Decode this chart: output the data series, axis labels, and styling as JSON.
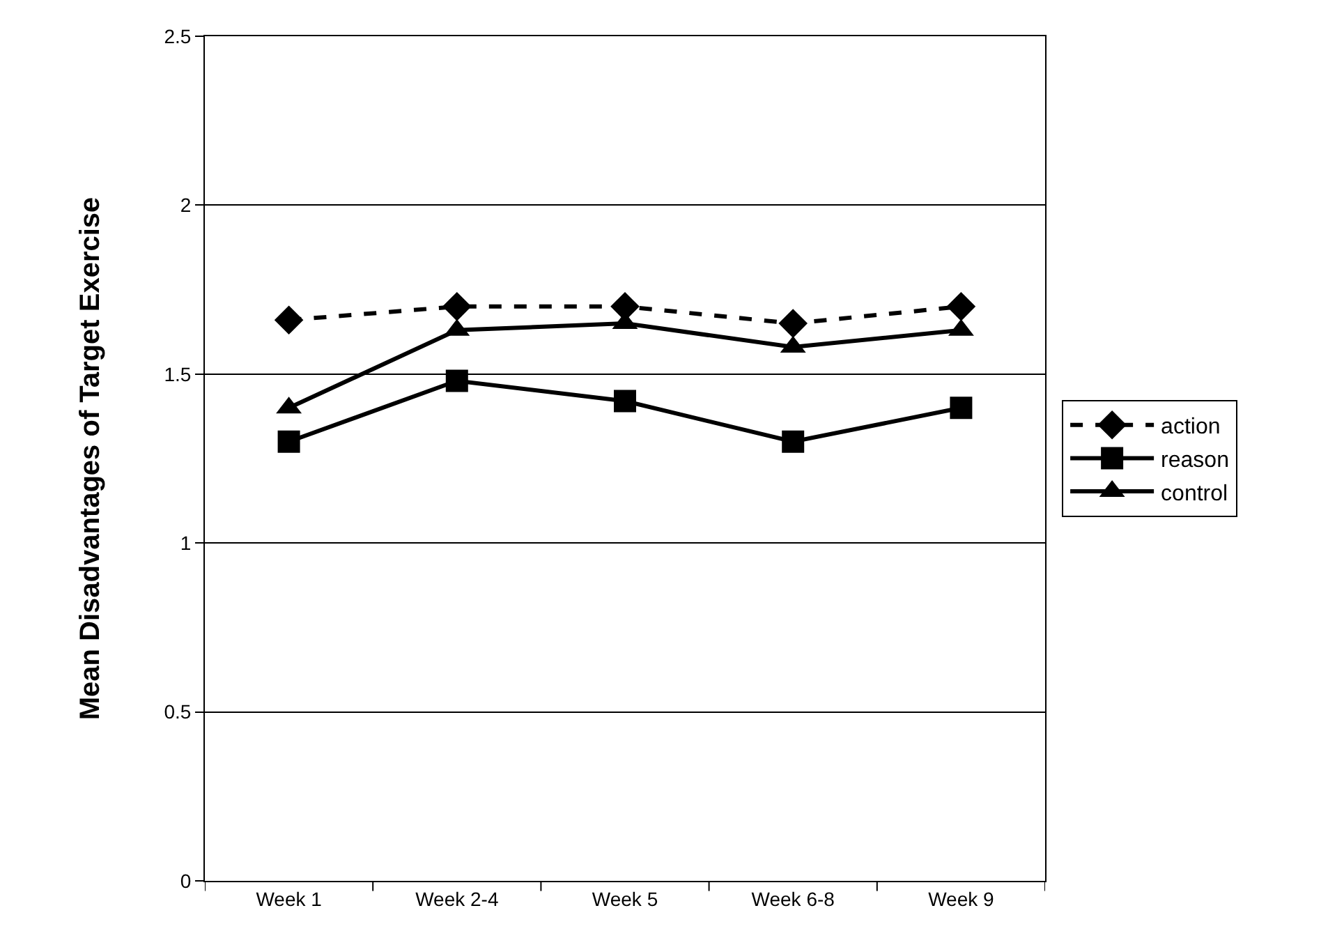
{
  "chart_data": {
    "type": "line",
    "ylabel": "Mean Disadvantages of Target Exercise",
    "categories": [
      "Week 1",
      "Week 2-4",
      "Week 5",
      "Week 6-8",
      "Week 9"
    ],
    "series": [
      {
        "name": "action",
        "color": "#000000",
        "marker": "diamond",
        "line_style": "dashed",
        "values": [
          1.66,
          1.7,
          1.7,
          1.65,
          1.7
        ]
      },
      {
        "name": "reason",
        "color": "#000000",
        "marker": "square",
        "line_style": "solid",
        "values": [
          1.3,
          1.48,
          1.42,
          1.3,
          1.4
        ]
      },
      {
        "name": "control",
        "color": "#000000",
        "marker": "triangle",
        "line_style": "solid",
        "values": [
          1.4,
          1.63,
          1.65,
          1.58,
          1.63
        ]
      }
    ],
    "ylim": [
      0,
      2.5
    ],
    "yticks": [
      0,
      0.5,
      1,
      1.5,
      2,
      2.5
    ],
    "grid": "y",
    "legend": "right"
  }
}
